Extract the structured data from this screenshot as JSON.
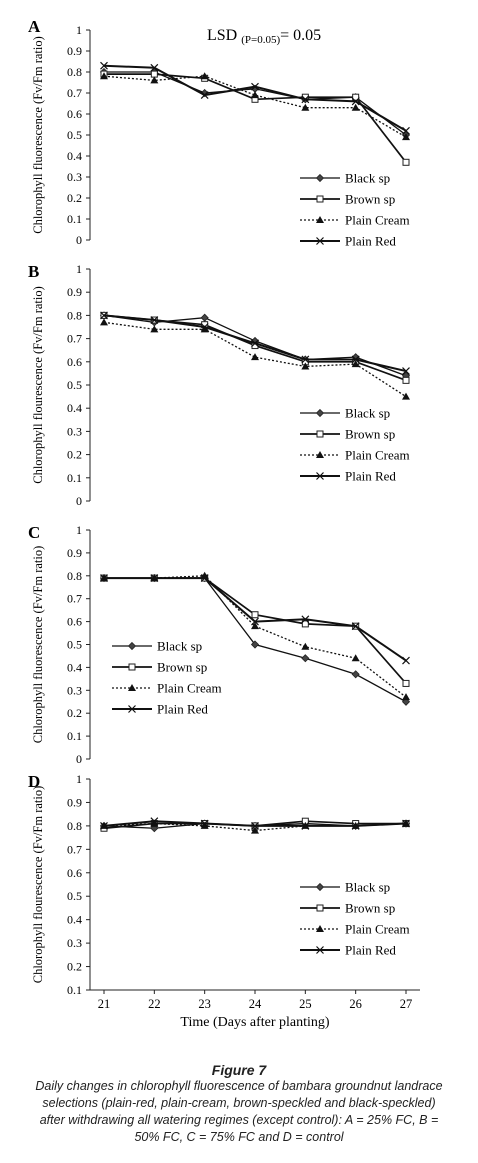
{
  "figure": {
    "title": "Figure 7",
    "caption": "Daily changes in chlorophyll fluorescence of bambara groundnut landrace selections (plain-red, plain-cream, brown-speckled and black-speckled) after withdrawing all watering regimes (except control): A = 25% FC, B = 50% FC, C = 75% FC and D = control"
  },
  "chart_data": [
    {
      "type": "line",
      "panel": "A",
      "annotation": "LSD (P=0.05)= 0.05",
      "ylabel": "Chlorophyll fluorescence (Fv/Fm ratio)",
      "ylim": [
        0,
        1
      ],
      "yticks": [
        "0",
        "0.1",
        "0.2",
        "0.3",
        "0.4",
        "0.5",
        "0.6",
        "0.7",
        "0.8",
        "0.9",
        "1"
      ],
      "x": [
        21,
        22,
        23,
        24,
        25,
        26,
        27
      ],
      "legend_position": "right",
      "series": [
        {
          "name": "Black sp",
          "values": [
            0.8,
            0.8,
            0.7,
            0.72,
            0.67,
            0.68,
            0.5
          ]
        },
        {
          "name": "Brown sp",
          "values": [
            0.79,
            0.79,
            0.77,
            0.67,
            0.68,
            0.68,
            0.37
          ]
        },
        {
          "name": "Plain Cream",
          "values": [
            0.78,
            0.76,
            0.78,
            0.69,
            0.63,
            0.63,
            0.49
          ]
        },
        {
          "name": "Plain Red",
          "values": [
            0.83,
            0.82,
            0.69,
            0.73,
            0.67,
            0.66,
            0.52
          ]
        }
      ]
    },
    {
      "type": "line",
      "panel": "B",
      "ylabel": "Chlorophyll flourescence (Fv/Fm ratio)",
      "ylim": [
        0,
        1
      ],
      "yticks": [
        "0",
        "0.1",
        "0.2",
        "0.3",
        "0.4",
        "0.5",
        "0.6",
        "0.7",
        "0.8",
        "0.9",
        "1"
      ],
      "x": [
        21,
        22,
        23,
        24,
        25,
        26,
        27
      ],
      "legend_position": "right",
      "series": [
        {
          "name": "Black sp",
          "values": [
            0.8,
            0.77,
            0.79,
            0.69,
            0.61,
            0.62,
            0.54
          ]
        },
        {
          "name": "Brown sp",
          "values": [
            0.8,
            0.78,
            0.76,
            0.67,
            0.6,
            0.6,
            0.52
          ]
        },
        {
          "name": "Plain Cream",
          "values": [
            0.77,
            0.74,
            0.74,
            0.62,
            0.58,
            0.59,
            0.45
          ]
        },
        {
          "name": "Plain Red",
          "values": [
            0.8,
            0.78,
            0.75,
            0.68,
            0.61,
            0.61,
            0.56
          ]
        }
      ]
    },
    {
      "type": "line",
      "panel": "C",
      "ylabel": "Chlorophyll fluorescence (Fv/Fm ratio)",
      "ylim": [
        0,
        1
      ],
      "yticks": [
        "0",
        "0.1",
        "0.2",
        "0.3",
        "0.4",
        "0.5",
        "0.6",
        "0.7",
        "0.8",
        "0.9",
        "1"
      ],
      "x": [
        21,
        22,
        23,
        24,
        25,
        26,
        27
      ],
      "legend_position": "left",
      "series": [
        {
          "name": "Black sp",
          "values": [
            0.79,
            0.79,
            0.79,
            0.5,
            0.44,
            0.37,
            0.25
          ]
        },
        {
          "name": "Brown sp",
          "values": [
            0.79,
            0.79,
            0.79,
            0.63,
            0.59,
            0.58,
            0.33
          ]
        },
        {
          "name": "Plain Cream",
          "values": [
            0.79,
            0.79,
            0.8,
            0.58,
            0.49,
            0.44,
            0.27
          ]
        },
        {
          "name": "Plain Red",
          "values": [
            0.79,
            0.79,
            0.79,
            0.6,
            0.61,
            0.58,
            0.43
          ]
        }
      ]
    },
    {
      "type": "line",
      "panel": "D",
      "ylabel": "Chlorophyll flourescence (Fv/Fm ratio)",
      "xlabel": "Time (Days after planting)",
      "ylim": [
        0.1,
        1
      ],
      "yticks": [
        "0.1",
        "0.2",
        "0.3",
        "0.4",
        "0.5",
        "0.6",
        "0.7",
        "0.8",
        "0.9",
        "1"
      ],
      "x": [
        21,
        22,
        23,
        24,
        25,
        26,
        27
      ],
      "legend_position": "right",
      "series": [
        {
          "name": "Black sp",
          "values": [
            0.8,
            0.79,
            0.81,
            0.8,
            0.81,
            0.8,
            0.81
          ]
        },
        {
          "name": "Brown sp",
          "values": [
            0.79,
            0.81,
            0.81,
            0.8,
            0.82,
            0.81,
            0.81
          ]
        },
        {
          "name": "Plain Cream",
          "values": [
            0.8,
            0.81,
            0.8,
            0.78,
            0.8,
            0.8,
            0.81
          ]
        },
        {
          "name": "Plain Red",
          "values": [
            0.8,
            0.82,
            0.81,
            0.8,
            0.8,
            0.8,
            0.81
          ]
        }
      ]
    }
  ]
}
